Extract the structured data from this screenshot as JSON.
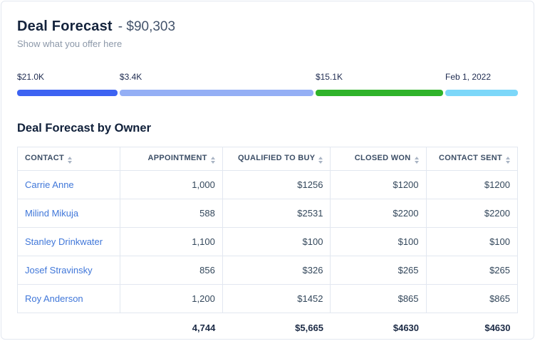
{
  "header": {
    "title": "Deal Forecast",
    "amount": "- $90,303",
    "subtitle": "Show what you offer here"
  },
  "progress_bar": {
    "segments": [
      {
        "label": "$21.0K",
        "color": "#3d63f2",
        "width_pct": 20.3
      },
      {
        "label": "$3.4K",
        "color": "#94aff5",
        "width_pct": 39.2
      },
      {
        "label": "$15.1K",
        "color": "#2fb32a",
        "width_pct": 25.8
      },
      {
        "label": "Feb 1, 2022",
        "color": "#7cd7f9",
        "width_pct": 14.7
      }
    ]
  },
  "table": {
    "title": "Deal Forecast by Owner",
    "columns": [
      {
        "label": "Contact",
        "align": "left",
        "width_pct": 20.5
      },
      {
        "label": "Appointment",
        "align": "right",
        "width_pct": 20.5
      },
      {
        "label": "Qualified to buy",
        "align": "right",
        "width_pct": 21.6
      },
      {
        "label": "Closed won",
        "align": "right",
        "width_pct": 19.1
      },
      {
        "label": "Contact sent",
        "align": "right",
        "width_pct": 18.3
      }
    ],
    "rows": [
      {
        "contact": "Carrie Anne",
        "values": [
          "1,000",
          "$1256",
          "$1200",
          "$1200"
        ]
      },
      {
        "contact": "Milind Mikuja",
        "values": [
          "588",
          "$2531",
          "$2200",
          "$2200"
        ]
      },
      {
        "contact": "Stanley Drinkwater",
        "values": [
          "1,100",
          "$100",
          "$100",
          "$100"
        ]
      },
      {
        "contact": "Josef Stravinsky",
        "values": [
          "856",
          "$326",
          "$265",
          "$265"
        ]
      },
      {
        "contact": "Roy Anderson",
        "values": [
          "1,200",
          "$1452",
          "$865",
          "$865"
        ]
      }
    ],
    "totals": [
      "4,744",
      "$5,665",
      "$4630",
      "$4630"
    ]
  },
  "colors": {
    "link": "#4077d9",
    "title": "#14233c",
    "border": "#e2e7f0"
  }
}
